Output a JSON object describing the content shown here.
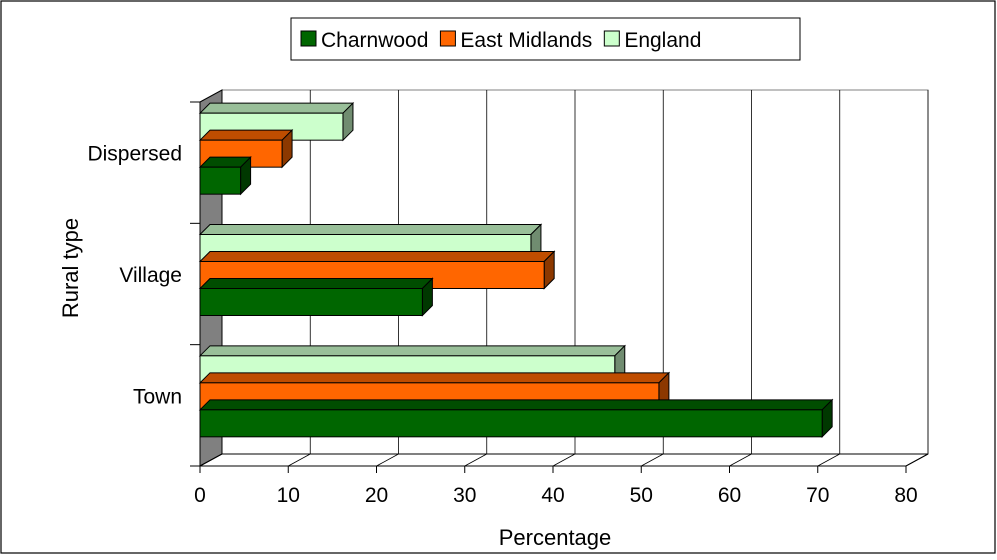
{
  "chart_data": {
    "type": "bar",
    "orientation": "horizontal",
    "style": "3d",
    "categories": [
      "Town",
      "Village",
      "Dispersed"
    ],
    "series": [
      {
        "name": "Charnwood",
        "color": "#006600",
        "values": [
          70.5,
          25.2,
          4.6
        ]
      },
      {
        "name": "East Midlands",
        "color": "#FF6600",
        "values": [
          52,
          39,
          9.3
        ]
      },
      {
        "name": "England",
        "color": "#CCFFCC",
        "values": [
          47,
          37.5,
          16.2
        ]
      }
    ],
    "xlim": [
      0,
      80
    ],
    "xticks": [
      0,
      10,
      20,
      30,
      40,
      50,
      60,
      70,
      80
    ],
    "xlabel": "Percentage",
    "ylabel": "Rural type",
    "grid": "vertical",
    "legend_position": "top"
  }
}
